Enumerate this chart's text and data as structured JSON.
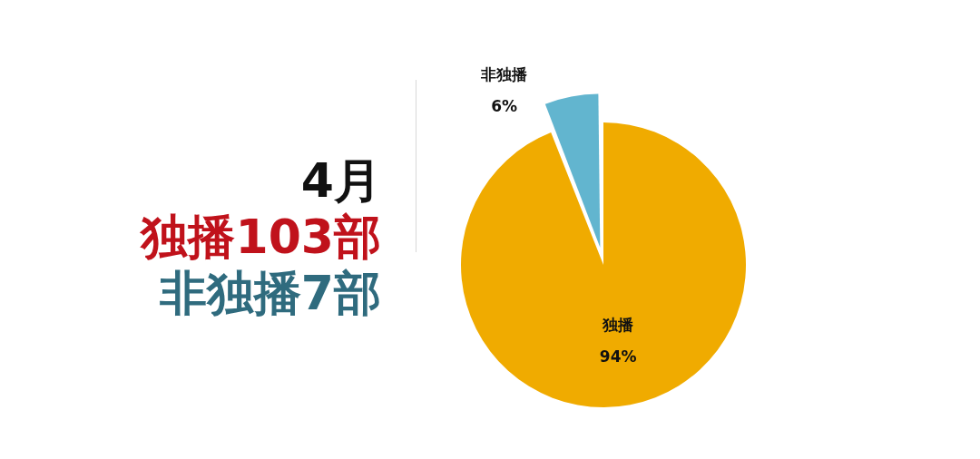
{
  "chart_data": {
    "type": "pie",
    "title": "4月",
    "annotations": [
      "独播103部",
      "非独播7部"
    ],
    "categories": [
      "独播",
      "非独播"
    ],
    "values": [
      94,
      6
    ],
    "colors": [
      "#f0ab00",
      "#62b5cf"
    ],
    "value_labels": [
      "94%",
      "6%"
    ],
    "legend": false
  }
}
